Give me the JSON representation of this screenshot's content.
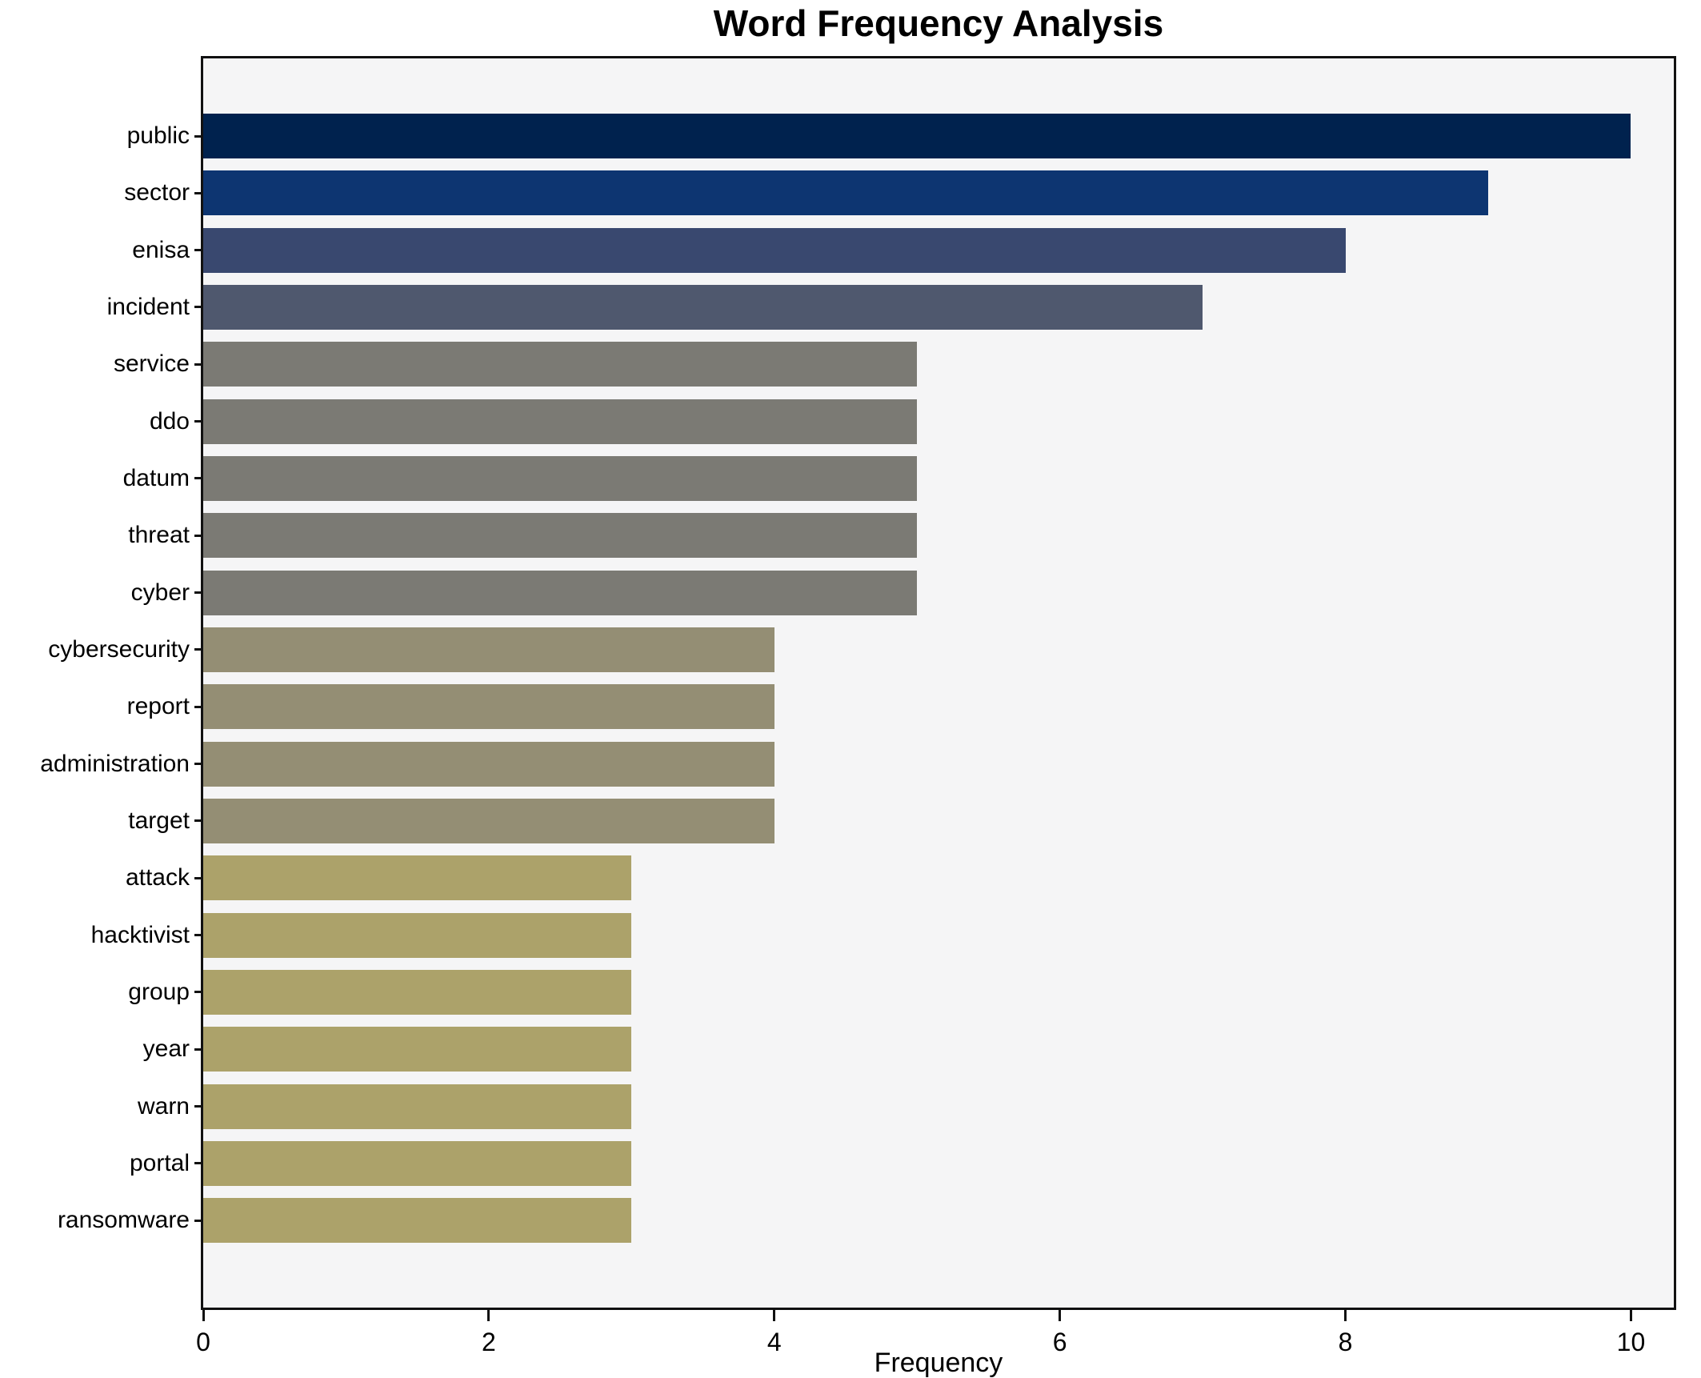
{
  "chart_data": {
    "type": "bar",
    "orientation": "horizontal",
    "title": "Word Frequency Analysis",
    "xlabel": "Frequency",
    "ylabel": "",
    "categories": [
      "public",
      "sector",
      "enisa",
      "incident",
      "service",
      "ddo",
      "datum",
      "threat",
      "cyber",
      "cybersecurity",
      "report",
      "administration",
      "target",
      "attack",
      "hacktivist",
      "group",
      "year",
      "warn",
      "portal",
      "ransomware"
    ],
    "values": [
      10,
      9,
      8,
      7,
      5,
      5,
      5,
      5,
      5,
      4,
      4,
      4,
      4,
      3,
      3,
      3,
      3,
      3,
      3,
      3
    ],
    "bar_colors": [
      "#00224e",
      "#0d3571",
      "#39486f",
      "#4f586e",
      "#7b7a74",
      "#7b7a74",
      "#7b7a74",
      "#7b7a74",
      "#7b7a74",
      "#948e74",
      "#948e74",
      "#948e74",
      "#948e74",
      "#aca26a",
      "#aca26a",
      "#aca26a",
      "#aca26a",
      "#aca26a",
      "#aca26a",
      "#aca26a"
    ],
    "xticks": [
      0,
      2,
      4,
      6,
      8,
      10
    ],
    "xlim": [
      0,
      10.3
    ],
    "grid": false,
    "legend": "none",
    "plot_bg": "#f5f5f6",
    "figure_bg": "#ffffff",
    "spine_color": "#111111"
  }
}
